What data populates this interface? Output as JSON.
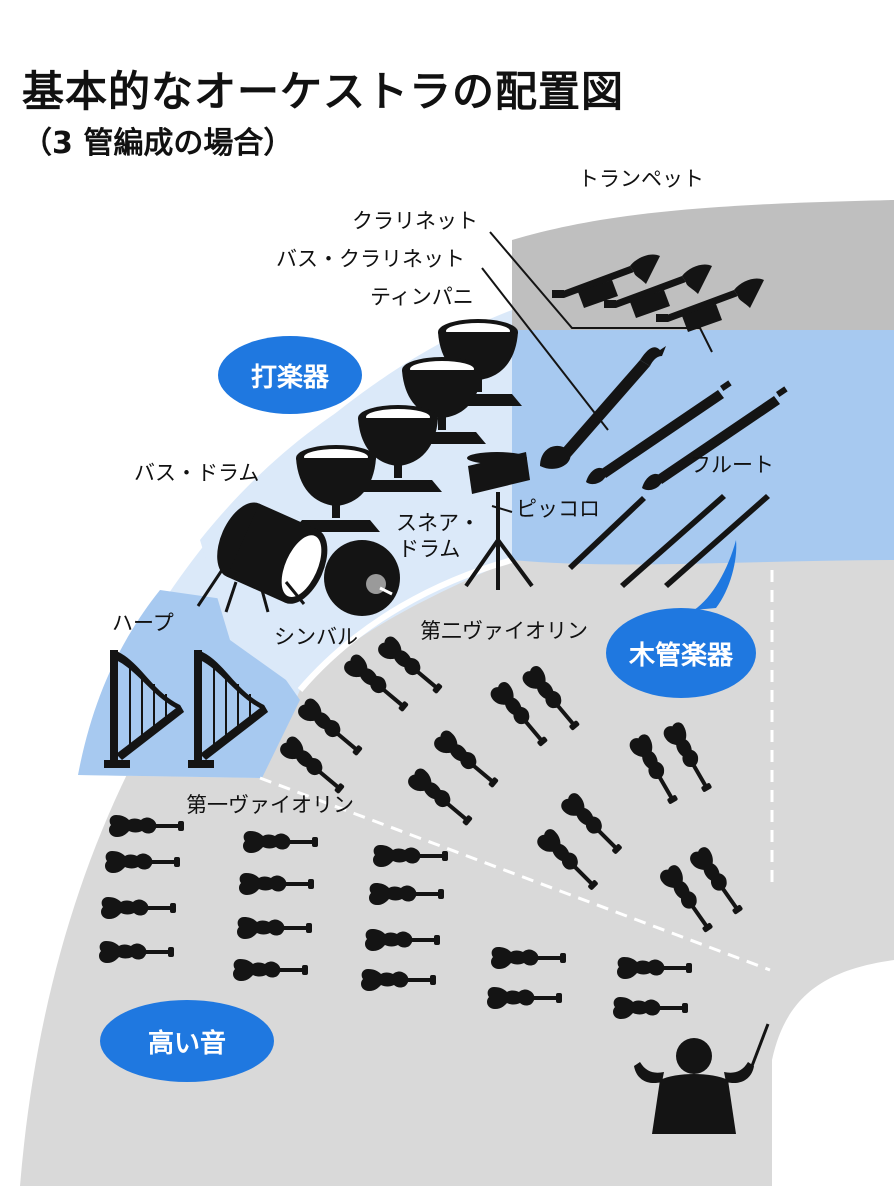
{
  "title": "基本的なオーケストラの配置図",
  "subtitle": "（3 管編成の場合）",
  "sections": {
    "percussion": "打楽器",
    "woodwinds": "木管楽器",
    "high_pitch": "高い音"
  },
  "instruments": {
    "trumpet": "トランペット",
    "clarinet": "クラリネット",
    "bass_clarinet": "バス・クラリネット",
    "timpani": "ティンパニ",
    "bass_drum": "バス・ドラム",
    "snare_drum_line1": "スネア・",
    "snare_drum_line2": "ドラム",
    "piccolo": "ピッコロ",
    "flute": "フルート",
    "harp": "ハープ",
    "cymbals": "シンバル",
    "second_violin": "第二ヴァイオリン",
    "first_violin": "第一ヴァイオリン"
  },
  "colors": {
    "stage_gray": "#d9d9d9",
    "dark_gray": "#bfbfbf",
    "light_blue": "#dbe9f9",
    "mid_blue": "#a7c9f0",
    "bubble_blue": "#1f78e0",
    "silhouette": "#141414"
  }
}
